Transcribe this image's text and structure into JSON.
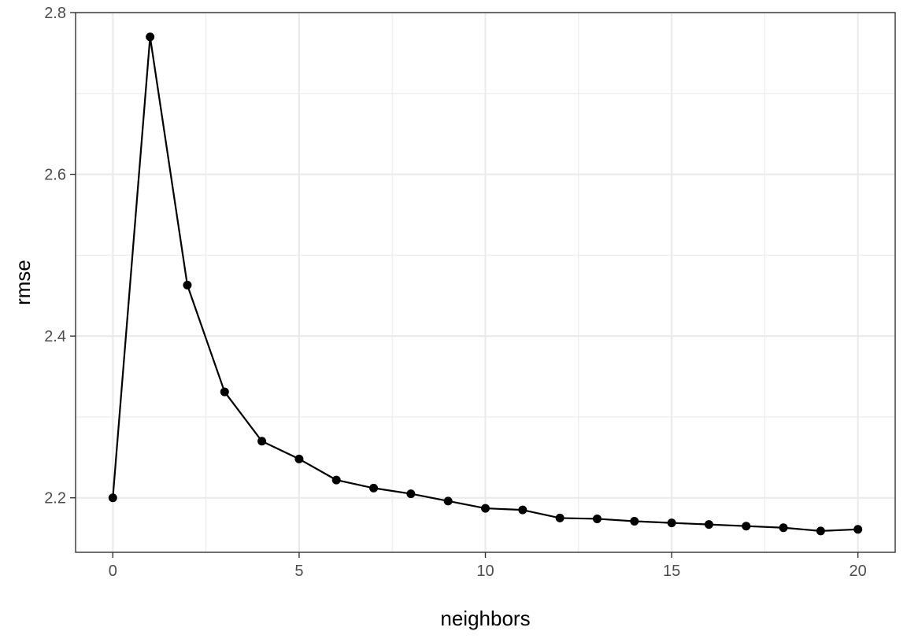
{
  "chart_data": {
    "type": "line",
    "title": "",
    "xlabel": "neighbors",
    "ylabel": "rmse",
    "xlim": [
      -2,
      21
    ],
    "ylim": [
      2.13,
      2.8
    ],
    "x_ticks": [
      0,
      5,
      10,
      15,
      20
    ],
    "x_tick_labels": [
      "0",
      "5",
      "10",
      "15",
      "20"
    ],
    "x_minor_ticks": [
      2.5,
      7.5,
      12.5,
      17.5
    ],
    "y_ticks": [
      2.2,
      2.4,
      2.6,
      2.8
    ],
    "y_tick_labels": [
      "2.2",
      "2.4",
      "2.6",
      "2.8"
    ],
    "y_minor_ticks": [
      2.3,
      2.5,
      2.7
    ],
    "grid": true,
    "markers": true,
    "colors": {
      "line": "#000000",
      "point": "#000000",
      "grid": "#ebebeb",
      "panel_border": "#333333",
      "background": "#ffffff"
    },
    "series": [
      {
        "x": [
          0,
          1,
          2,
          3,
          4,
          5,
          6,
          7,
          8,
          9,
          10,
          11,
          12,
          13,
          14,
          15,
          16,
          17,
          18,
          19,
          20
        ],
        "values": [
          2.2,
          2.77,
          2.463,
          2.331,
          2.27,
          2.248,
          2.222,
          2.212,
          2.205,
          2.196,
          2.187,
          2.185,
          2.175,
          2.174,
          2.171,
          2.169,
          2.167,
          2.165,
          2.163,
          2.159,
          2.161
        ]
      }
    ]
  }
}
